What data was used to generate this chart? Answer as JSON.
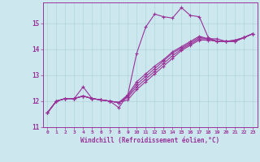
{
  "xlabel": "Windchill (Refroidissement éolien,°C)",
  "xlim": [
    -0.5,
    23.5
  ],
  "ylim": [
    11.0,
    15.8
  ],
  "xticks": [
    0,
    1,
    2,
    3,
    4,
    5,
    6,
    7,
    8,
    9,
    10,
    11,
    12,
    13,
    14,
    15,
    16,
    17,
    18,
    19,
    20,
    21,
    22,
    23
  ],
  "yticks": [
    11,
    12,
    13,
    14,
    15
  ],
  "bg_color": "#cce8ee",
  "grid_color": "#b0d4dc",
  "line_color": "#993399",
  "curves": [
    [
      11.55,
      12.0,
      12.1,
      12.1,
      12.55,
      12.1,
      12.05,
      12.0,
      11.75,
      12.25,
      13.85,
      14.85,
      15.35,
      15.25,
      15.2,
      15.6,
      15.3,
      15.25,
      14.45,
      14.3,
      14.3,
      14.35,
      14.45,
      14.6
    ],
    [
      11.55,
      12.0,
      12.1,
      12.1,
      12.2,
      12.1,
      12.05,
      12.0,
      11.95,
      12.05,
      12.45,
      12.75,
      13.05,
      13.35,
      13.65,
      13.95,
      14.15,
      14.35,
      14.35,
      14.3,
      14.3,
      14.3,
      14.45,
      14.6
    ],
    [
      11.55,
      12.0,
      12.1,
      12.1,
      12.2,
      12.1,
      12.05,
      12.0,
      11.95,
      12.15,
      12.55,
      12.85,
      13.15,
      13.45,
      13.75,
      14.0,
      14.2,
      14.4,
      14.4,
      14.3,
      14.3,
      14.3,
      14.45,
      14.6
    ],
    [
      11.55,
      12.0,
      12.1,
      12.1,
      12.2,
      12.1,
      12.05,
      12.0,
      11.95,
      12.2,
      12.65,
      12.95,
      13.25,
      13.55,
      13.85,
      14.05,
      14.25,
      14.45,
      14.4,
      14.3,
      14.3,
      14.3,
      14.45,
      14.6
    ],
    [
      11.55,
      12.0,
      12.1,
      12.1,
      12.2,
      12.1,
      12.05,
      12.0,
      11.95,
      12.25,
      12.75,
      13.05,
      13.35,
      13.6,
      13.9,
      14.1,
      14.3,
      14.5,
      14.4,
      14.4,
      14.3,
      14.35,
      14.45,
      14.6
    ]
  ]
}
